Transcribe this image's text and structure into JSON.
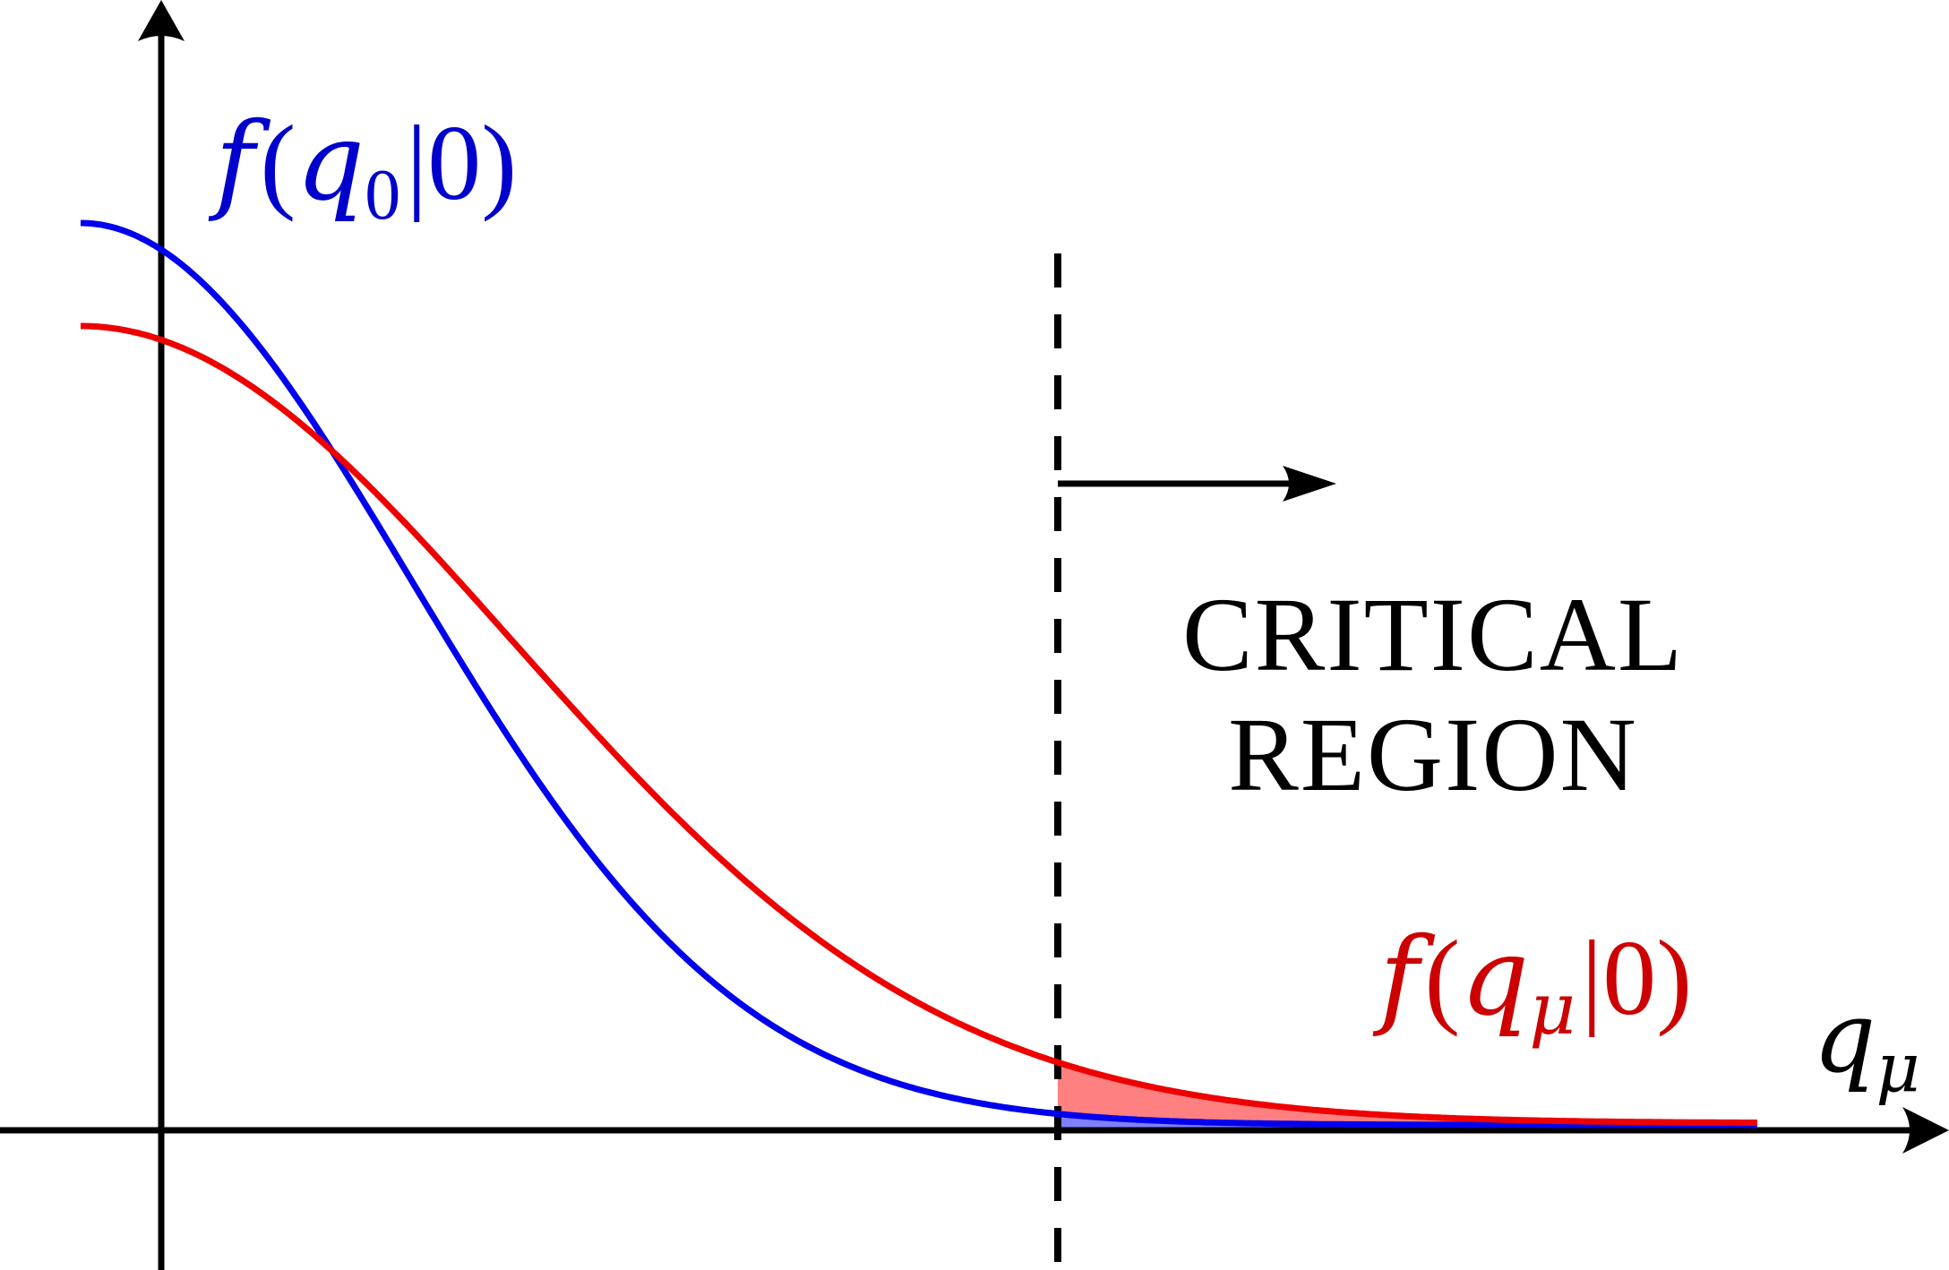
{
  "labels": {
    "blue_curve": {
      "func": "f",
      "open": "(",
      "var": "q",
      "sub": "0",
      "bar": "|",
      "arg": "0",
      "close": ")"
    },
    "red_curve": {
      "func": "f",
      "open": "(",
      "var": "q",
      "sub": "μ",
      "bar": "|",
      "arg": "0",
      "close": ")"
    },
    "x_axis": {
      "var": "q",
      "sub": "μ"
    },
    "critical_region": {
      "line1": "CRITICAL",
      "line2": "REGION"
    }
  },
  "colors": {
    "blue_curve": "#0000ee",
    "red_curve": "#ee0000",
    "blue_fill": "#8080ff",
    "red_fill": "#ff8080",
    "blue_text": "#0000cc",
    "red_text": "#cc0000",
    "axes": "#000000"
  },
  "icons": {
    "x_axis_arrow": "arrowhead-right",
    "y_axis_arrow": "arrowhead-up",
    "region_arrow": "arrow-right"
  }
}
